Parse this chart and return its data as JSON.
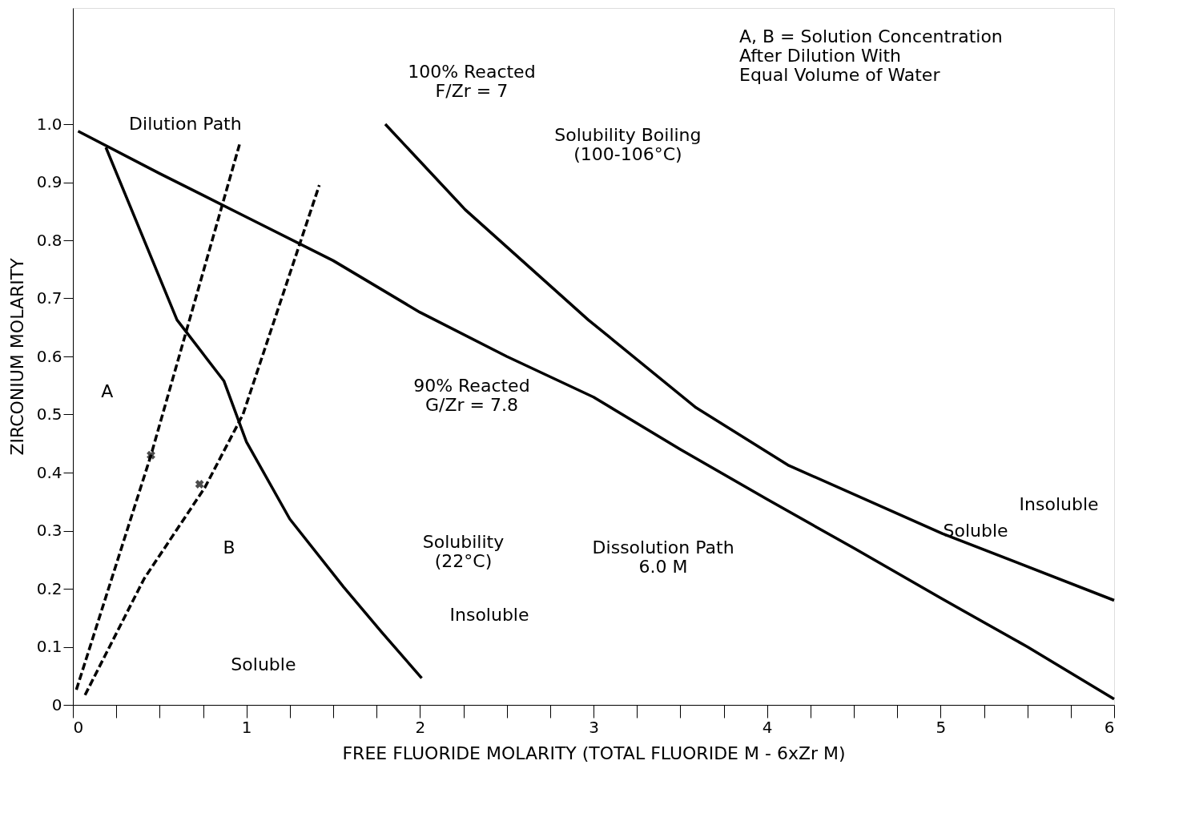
{
  "chart_data": {
    "type": "line",
    "xlabel": "FREE FLUORIDE MOLARITY (TOTAL FLUORIDE M - 6xZr M)",
    "ylabel": "ZIRCONIUM MOLARITY",
    "xlim": [
      0,
      6
    ],
    "ylim": [
      0,
      1.2
    ],
    "xticks": [
      0,
      {
        "value": 0.25,
        "label": null
      },
      {
        "value": 0.5,
        "label": null
      },
      {
        "value": 0.75,
        "label": null
      },
      1,
      {
        "value": 1.25,
        "label": null
      },
      {
        "value": 1.5,
        "label": null
      },
      {
        "value": 1.75,
        "label": null
      },
      2,
      {
        "value": 2.25,
        "label": null
      },
      {
        "value": 2.5,
        "label": null
      },
      {
        "value": 2.75,
        "label": null
      },
      3,
      {
        "value": 3.25,
        "label": null
      },
      {
        "value": 3.5,
        "label": null
      },
      {
        "value": 3.75,
        "label": null
      },
      4,
      {
        "value": 4.25,
        "label": null
      },
      {
        "value": 4.5,
        "label": null
      },
      {
        "value": 4.75,
        "label": null
      },
      5,
      {
        "value": 5.25,
        "label": null
      },
      {
        "value": 5.5,
        "label": null
      },
      {
        "value": 5.75,
        "label": null
      },
      6
    ],
    "yticks": [
      0,
      0.1,
      0.2,
      0.3,
      0.4,
      0.5,
      0.6,
      0.7,
      0.8,
      0.9,
      {
        "value": 1,
        "label": "1.0"
      }
    ],
    "grid": false,
    "series": [
      {
        "color": "#000000",
        "line_style": "solid",
        "x": [
          0.03,
          0.5,
          1,
          1.5,
          2,
          2.5,
          3,
          3.5,
          4,
          4.5,
          5,
          5.5,
          6
        ],
        "values": [
          0.988,
          0.915,
          0.84,
          0.765,
          0.676,
          0.6,
          0.53,
          0.44,
          0.354,
          0.27,
          0.184,
          0.1,
          0.01
        ]
      },
      {
        "color": "#000000",
        "line_style": "solid",
        "x": [
          0.19,
          0.6,
          0.87,
          1.0,
          1.25,
          1.56,
          1.78,
          2.01
        ],
        "values": [
          0.96,
          0.663,
          0.558,
          0.453,
          0.32,
          0.203,
          0.125,
          0.046
        ]
      },
      {
        "color": "#000000",
        "line_style": "solid",
        "x": [
          1.8,
          2.26,
          2.97,
          3.59,
          4.12,
          5.01,
          6.0
        ],
        "values": [
          1.0,
          0.853,
          0.663,
          0.512,
          0.413,
          0.295,
          0.18
        ]
      },
      {
        "color": "#000000",
        "line_style": "dashed",
        "x": [
          0.02,
          0.45,
          0.96
        ],
        "values": [
          0.026,
          0.43,
          0.965
        ]
      },
      {
        "color": "#000000",
        "line_style": "dashed",
        "x": [
          0.07,
          0.41,
          0.76,
          0.98,
          1.42
        ],
        "values": [
          0.017,
          0.217,
          0.374,
          0.5,
          0.895
        ]
      },
      {
        "type": "scatter",
        "marker": "cross",
        "color": "#000000",
        "x": [
          0.45,
          0.73
        ],
        "values": [
          0.43,
          0.38
        ]
      }
    ],
    "annotations": [
      "A, B = Solution Concentration\nAfter Dilution With\nEqual Volume of Water",
      "100% Reacted\nF/Zr = 7",
      "Dilution Path",
      "Solubility Boiling\n(100-106°C)",
      "90% Reacted\nG/Zr = 7.8",
      "A",
      "B",
      "Solubility\n(22°C)",
      "Insoluble",
      "Soluble",
      "Dissolution Path\n6.0 M",
      "Insoluble",
      "Soluble"
    ]
  }
}
